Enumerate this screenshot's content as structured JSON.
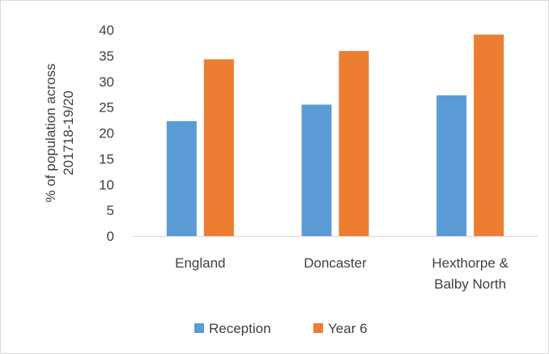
{
  "chart_data": {
    "type": "bar",
    "title": "",
    "xlabel": "",
    "ylabel_lines": [
      "% of population across",
      "201718-19/20"
    ],
    "ylim": [
      0,
      40
    ],
    "yticks": [
      0,
      5,
      10,
      15,
      20,
      25,
      30,
      35,
      40
    ],
    "categories": [
      [
        "England"
      ],
      [
        "Doncaster"
      ],
      [
        "Hexthorpe &",
        "Balby North"
      ]
    ],
    "series": [
      {
        "name": "Reception",
        "color": "#5b9bd5",
        "values": [
          22.3,
          25.5,
          27.3
        ]
      },
      {
        "name": "Year 6",
        "color": "#ed7d31",
        "values": [
          34.3,
          35.9,
          39.1
        ]
      }
    ],
    "grid": false,
    "legend_position": "bottom"
  }
}
